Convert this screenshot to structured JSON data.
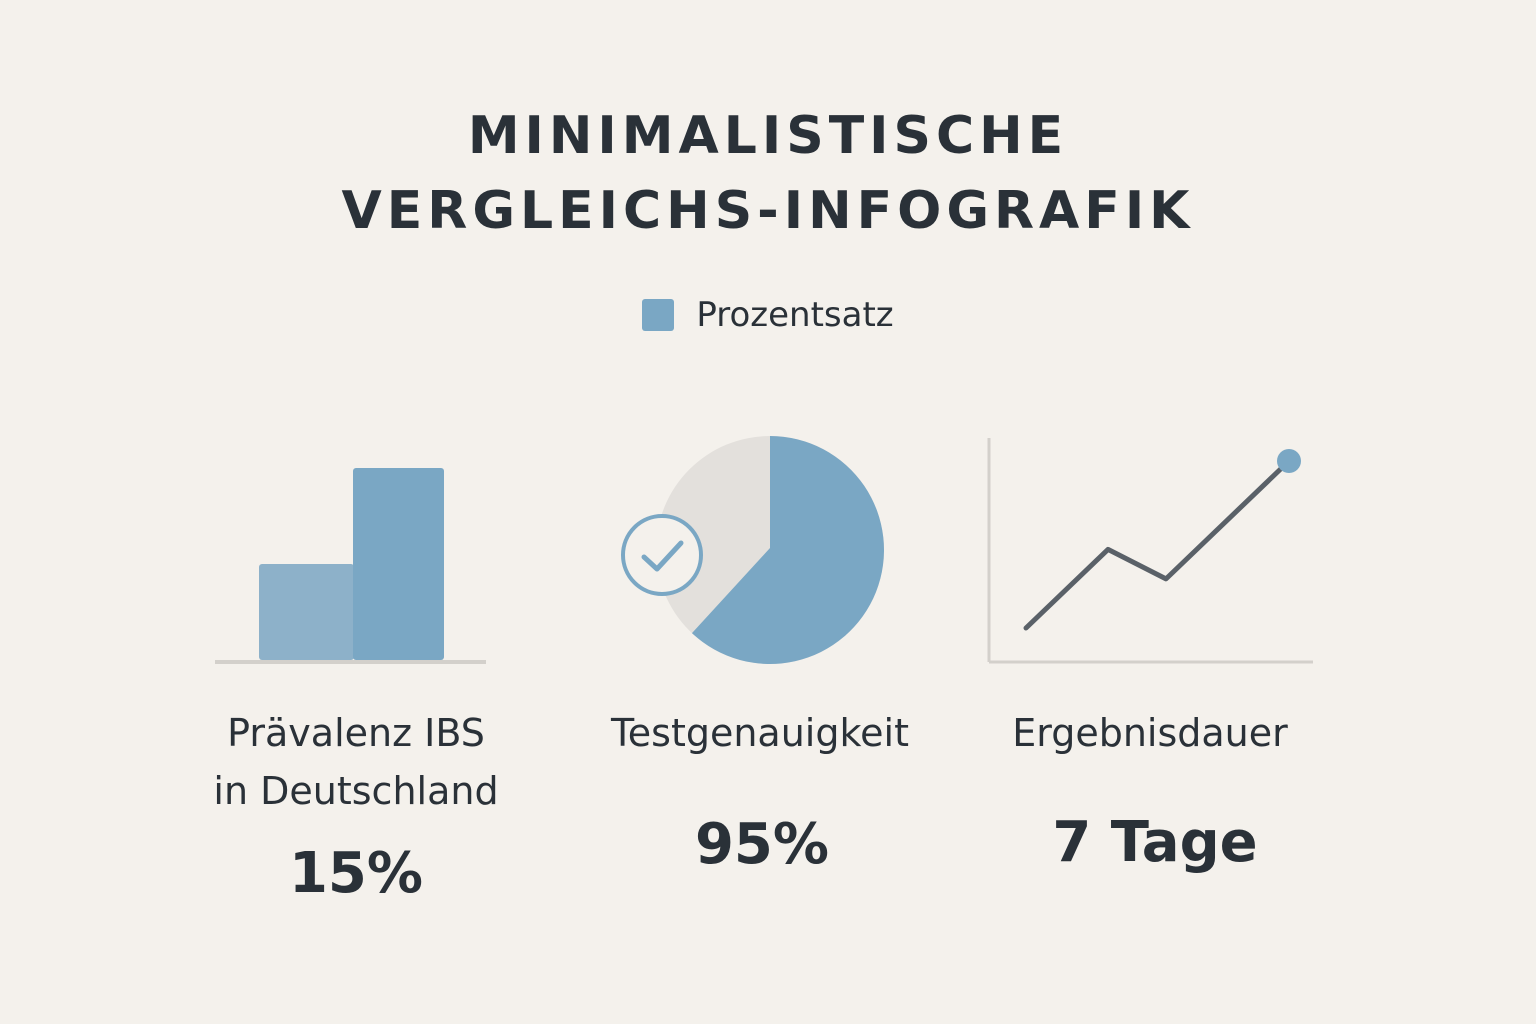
{
  "title_lines": [
    "MINIMALISTISCHE",
    "VERGLEICHS-INFOGRAFIK"
  ],
  "legend": {
    "label": "Prozentsatz",
    "color": "#7aa7c4"
  },
  "colors": {
    "accent": "#7aa7c4",
    "accent_light": "#8db1c9",
    "track": "#e3e0dc",
    "baseline": "#d3d0cb",
    "line": "#5a6168",
    "text": "#2a3138",
    "background": "#f4f1ec"
  },
  "chart_data": [
    {
      "type": "bar",
      "series": [
        {
          "name": "Prozentsatz",
          "values": [
            50,
            100
          ]
        }
      ],
      "label_lines": [
        "Prävalenz IBS",
        "in Deutschland"
      ],
      "value_label": "15%"
    },
    {
      "type": "pie",
      "values": [
        62,
        38
      ],
      "label_lines": [
        "Testgenauigkeit"
      ],
      "value_label": "95%",
      "icon": "check-circle-icon"
    },
    {
      "type": "line",
      "x": [
        0,
        1,
        2,
        3
      ],
      "y": [
        0,
        40,
        25,
        85
      ],
      "label_lines": [
        "Ergebnisdauer"
      ],
      "value_label": "7 Tage"
    }
  ]
}
